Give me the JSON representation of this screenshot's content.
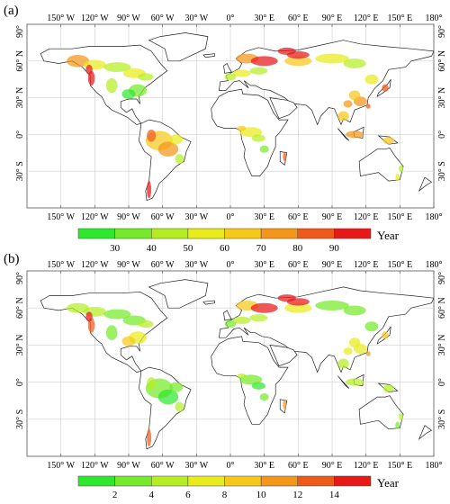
{
  "panels": [
    {
      "label": "(a)",
      "colorbar": {
        "ticks": [
          "30",
          "40",
          "50",
          "60",
          "70",
          "80",
          "90"
        ],
        "unit": "Year",
        "colors": [
          "#2ee82e",
          "#74ea2a",
          "#b4ee22",
          "#e8ec1a",
          "#f6c81a",
          "#f4961a",
          "#ee5a1a",
          "#e81818"
        ]
      },
      "theme": "high"
    },
    {
      "label": "(b)",
      "colorbar": {
        "ticks": [
          "2",
          "4",
          "6",
          "8",
          "10",
          "12",
          "14"
        ],
        "unit": "Year",
        "colors": [
          "#2ee82e",
          "#74ea2a",
          "#b4ee22",
          "#e8ec1a",
          "#f6c81a",
          "#f4961a",
          "#ee5a1a",
          "#e81818"
        ]
      },
      "theme": "low"
    }
  ],
  "map": {
    "lon_labels": [
      "150° W",
      "120° W",
      "90° W",
      "60° W",
      "30° W",
      "0°",
      "30° E",
      "60° E",
      "90° E",
      "120° E",
      "150° E",
      "180°"
    ],
    "lat_labels": [
      "90°",
      "60° N",
      "30° N",
      "0°",
      "30° S"
    ]
  }
}
